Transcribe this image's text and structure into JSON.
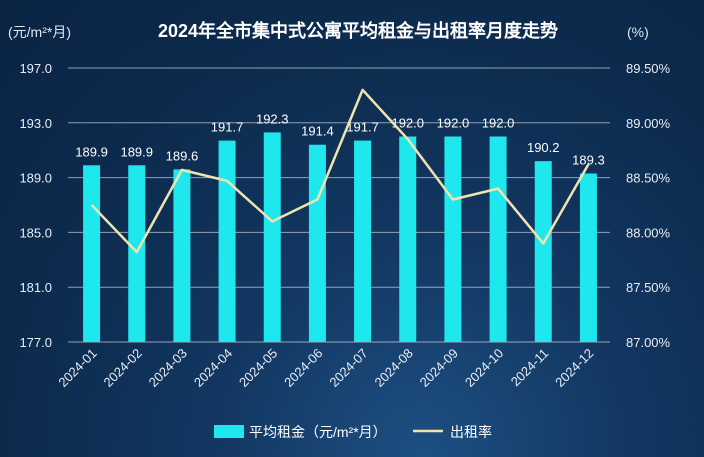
{
  "chart_data": {
    "type": "bar",
    "title": "2024年全市集中式公寓平均租金与出租率月度走势",
    "left_unit": "(元/m²*月)",
    "right_unit": "(%)",
    "categories": [
      "2024-01",
      "2024-02",
      "2024-03",
      "2024-04",
      "2024-05",
      "2024-06",
      "2024-07",
      "2024-08",
      "2024-09",
      "2024-10",
      "2024-11",
      "2024-12"
    ],
    "y_left": {
      "min": 177.0,
      "max": 197.0,
      "ticks": [
        "197.0",
        "193.0",
        "189.0",
        "185.0",
        "181.0",
        "177.0"
      ]
    },
    "y_right": {
      "min": 87.0,
      "max": 89.5,
      "ticks": [
        "89.50%",
        "89.00%",
        "88.50%",
        "88.00%",
        "87.50%",
        "87.00%"
      ]
    },
    "grid": true,
    "legend_position": "bottom",
    "series": [
      {
        "name": "平均租金（元/m²*月）",
        "type": "bar",
        "axis": "left",
        "color": "#1ee8ee",
        "values": [
          189.9,
          189.9,
          189.6,
          191.7,
          192.3,
          191.4,
          191.7,
          192.0,
          192.0,
          192.0,
          190.2,
          189.3
        ],
        "labels": [
          "189.9",
          "189.9",
          "189.6",
          "191.7",
          "192.3",
          "191.4",
          "191.7",
          "192.0",
          "192.0",
          "192.0",
          "190.2",
          "189.3"
        ]
      },
      {
        "name": "出租率",
        "type": "line",
        "axis": "right",
        "color": "#efe4b0",
        "values": [
          88.25,
          87.82,
          88.57,
          88.47,
          88.1,
          88.3,
          89.3,
          88.85,
          88.3,
          88.4,
          87.9,
          88.62
        ]
      }
    ]
  }
}
